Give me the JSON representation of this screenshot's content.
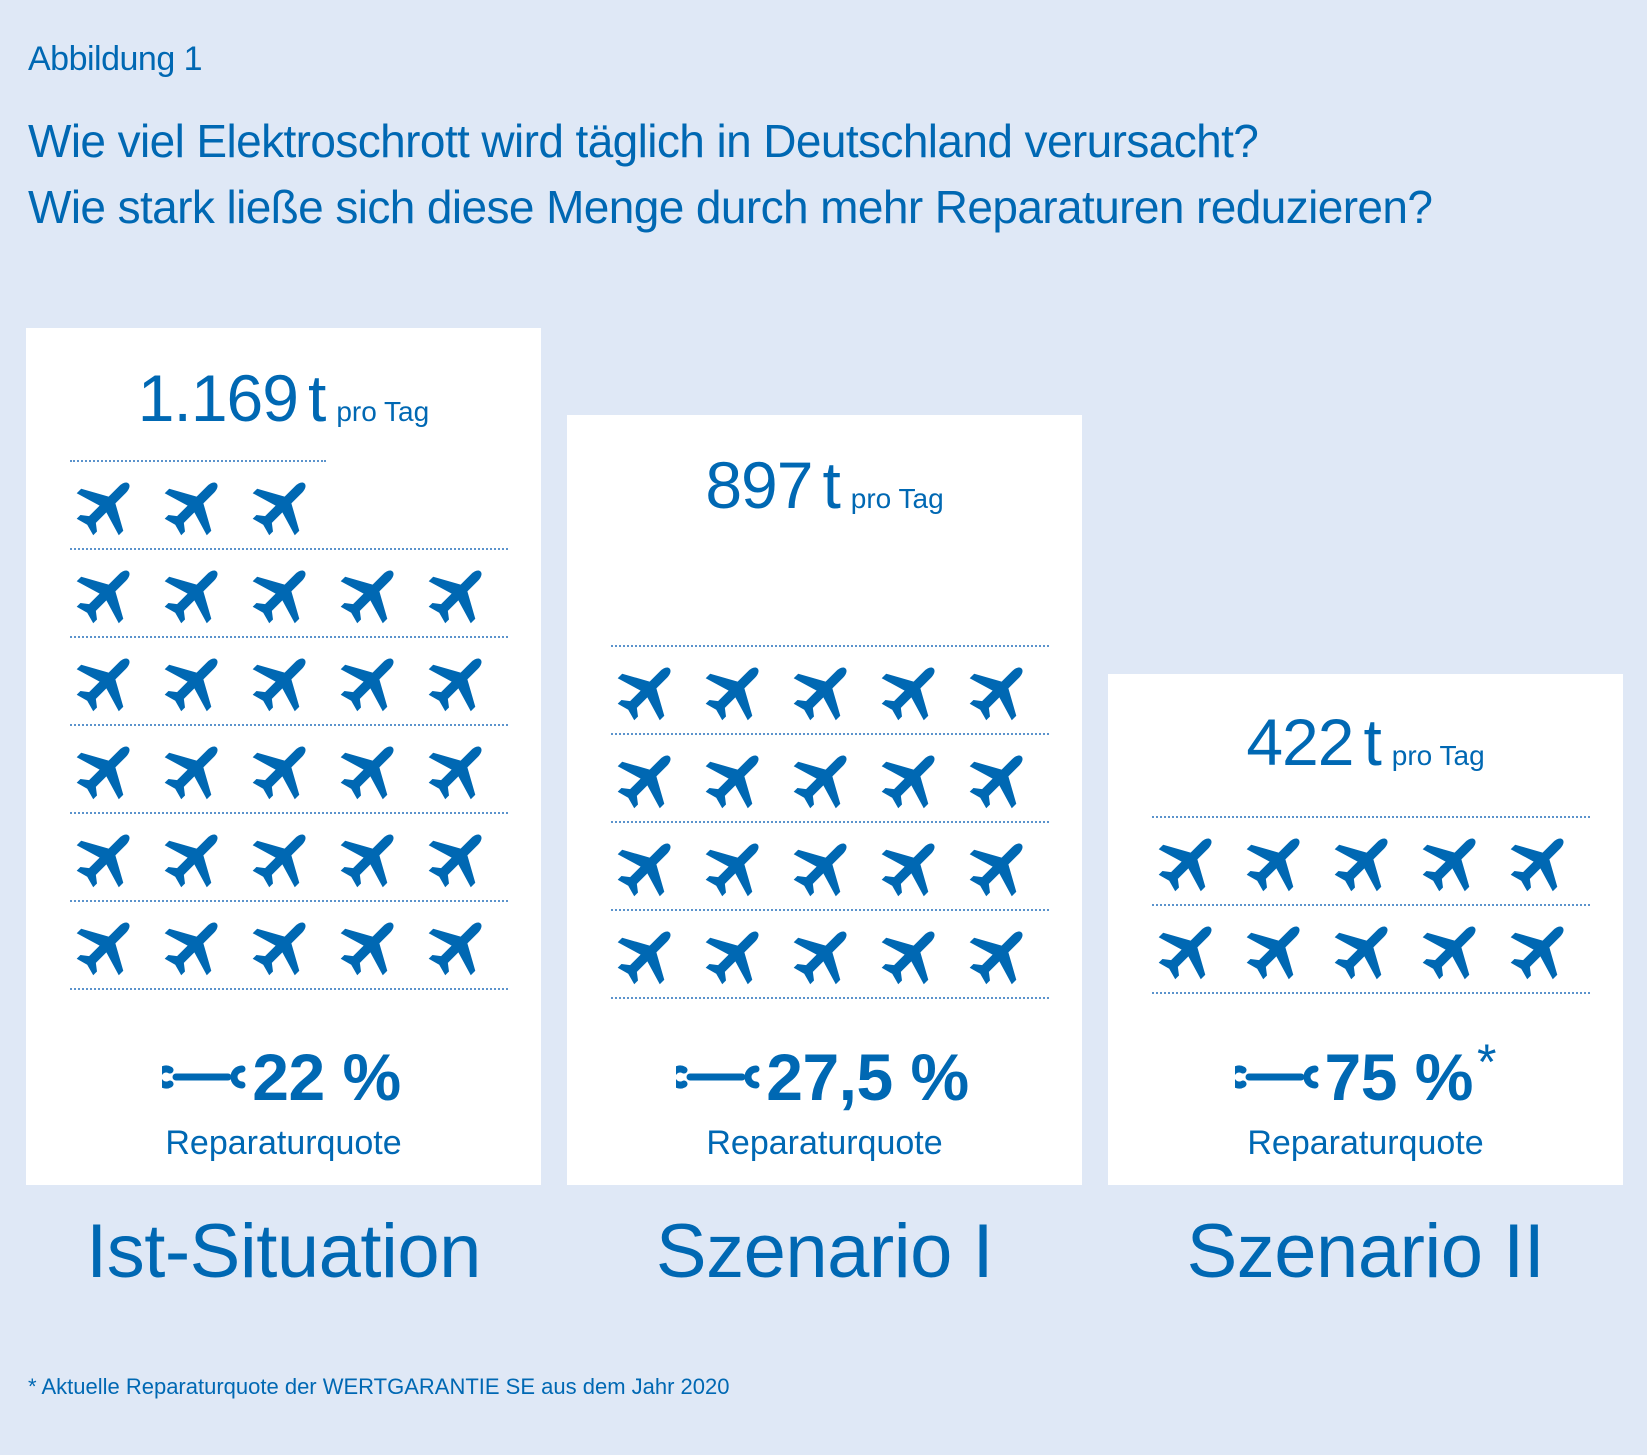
{
  "figure_label": "Abbildung 1",
  "title_lines": [
    "Wie viel Elektroschrott wird täglich in Deutschland verursacht?",
    "Wie stark ließe sich diese Menge durch mehr Reparaturen reduzieren?"
  ],
  "colors": {
    "accent": "#0068b3",
    "background": "#dfe8f6",
    "card": "#ffffff",
    "dots": "#5b93cc"
  },
  "icons": {
    "unit_icon": "airplane-icon",
    "rate_icon": "wrench-icon"
  },
  "chart_data": {
    "type": "bar",
    "categories": [
      "Ist-Situation",
      "Szenario I",
      "Szenario II"
    ],
    "values": [
      1169,
      897,
      422
    ],
    "unit": "t pro Tag",
    "icon_counts": [
      28,
      20,
      10
    ],
    "repair_rates": [
      "22 %",
      "27,5 %",
      "75 %"
    ]
  },
  "scenarios": [
    {
      "name": "Ist-Situation",
      "amount": "1.169",
      "unit": "t",
      "per": "pro Tag",
      "rate": "22 %",
      "rate_mark": "",
      "rate_label": "Reparaturquote",
      "rows": [
        3,
        5,
        5,
        5,
        5,
        5
      ]
    },
    {
      "name": "Szenario I",
      "amount": "897",
      "unit": "t",
      "per": "pro Tag",
      "rate": "27,5 %",
      "rate_mark": "",
      "rate_label": "Reparaturquote",
      "rows": [
        5,
        5,
        5,
        5
      ]
    },
    {
      "name": "Szenario II",
      "amount": "422",
      "unit": "t",
      "per": "pro Tag",
      "rate": "75 %",
      "rate_mark": "*",
      "rate_label": "Reparaturquote",
      "rows": [
        5,
        5
      ]
    }
  ],
  "footnote": "* Aktuelle Reparaturquote der WERTGARANTIE SE aus dem Jahr 2020"
}
